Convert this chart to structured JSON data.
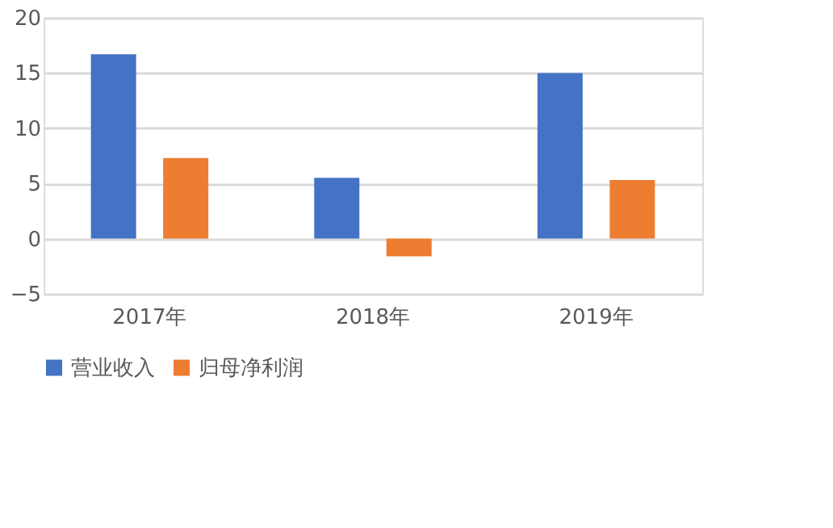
{
  "chart_data": {
    "type": "bar",
    "categories": [
      "2017年",
      "2018年",
      "2019年"
    ],
    "series": [
      {
        "name": "营业收入",
        "color": "#4472c4",
        "values": [
          16.7,
          5.5,
          15.0
        ]
      },
      {
        "name": "归母净利润",
        "color": "#ed7d31",
        "values": [
          7.3,
          -1.6,
          5.3
        ]
      }
    ],
    "ylim": [
      -5,
      20
    ],
    "yticks": [
      {
        "value": -5,
        "label": "−5"
      },
      0,
      5,
      10,
      15,
      20
    ],
    "grid": "y",
    "legend": "bottom"
  }
}
